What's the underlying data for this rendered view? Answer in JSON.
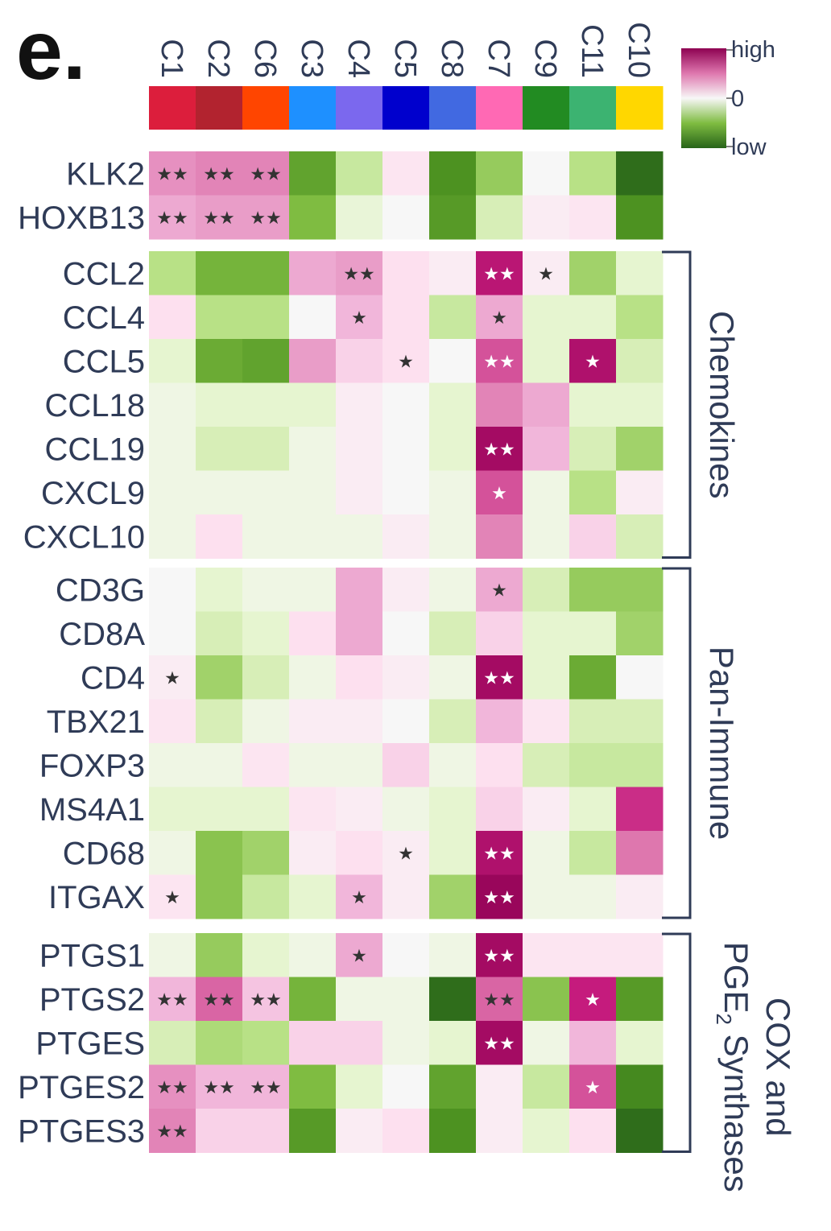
{
  "panel_label": "e.",
  "chart_data": {
    "type": "heatmap",
    "columns": [
      "C1",
      "C2",
      "C6",
      "C3",
      "C4",
      "C5",
      "C8",
      "C7",
      "C9",
      "C11",
      "C10"
    ],
    "column_colors": [
      "#dc1e3c",
      "#b2232f",
      "#ff4500",
      "#1e90ff",
      "#7b68ee",
      "#0000cd",
      "#4169e1",
      "#ff69b4",
      "#228b22",
      "#3cb371",
      "#ffd700"
    ],
    "legend": {
      "high": "high",
      "zero": "0",
      "low": "low"
    },
    "color_range": [
      -1,
      1
    ],
    "groups": [
      {
        "label": "",
        "rows": [
          {
            "gene": "KLK2",
            "values": [
              0.4,
              0.45,
              0.45,
              -0.65,
              -0.2,
              0.08,
              -0.75,
              -0.4,
              0.0,
              -0.25,
              -0.95
            ],
            "stars": [
              "**",
              "**",
              "**",
              "",
              "",
              "",
              "",
              "",
              "",
              "",
              ""
            ]
          },
          {
            "gene": "HOXB13",
            "values": [
              0.3,
              0.35,
              0.35,
              -0.5,
              -0.08,
              0.0,
              -0.7,
              -0.15,
              0.05,
              0.08,
              -0.75
            ],
            "stars": [
              "**",
              "**",
              "**",
              "",
              "",
              "",
              "",
              "",
              "",
              "",
              ""
            ]
          }
        ]
      },
      {
        "label": "Chemokines",
        "rows": [
          {
            "gene": "CCL2",
            "values": [
              -0.25,
              -0.55,
              -0.55,
              0.3,
              0.35,
              0.1,
              0.05,
              0.8,
              0.05,
              -0.35,
              -0.1
            ],
            "stars": [
              "",
              "",
              "",
              "",
              "**",
              "",
              "",
              "**",
              "*",
              "",
              ""
            ]
          },
          {
            "gene": "CCL4",
            "values": [
              0.1,
              -0.25,
              -0.25,
              0.0,
              0.25,
              0.1,
              -0.2,
              0.3,
              -0.1,
              -0.1,
              -0.25
            ],
            "stars": [
              "",
              "",
              "",
              "",
              "*",
              "",
              "",
              "*",
              "",
              "",
              ""
            ]
          },
          {
            "gene": "CCL5",
            "values": [
              -0.1,
              -0.6,
              -0.65,
              0.35,
              0.15,
              0.1,
              0.0,
              0.6,
              -0.1,
              0.85,
              -0.15
            ],
            "stars": [
              "",
              "",
              "",
              "",
              "",
              "*",
              "",
              "**",
              "",
              "*",
              ""
            ]
          },
          {
            "gene": "CCL18",
            "values": [
              -0.05,
              -0.1,
              -0.1,
              -0.1,
              0.05,
              0.0,
              -0.1,
              0.45,
              0.3,
              -0.1,
              -0.1
            ],
            "stars": [
              "",
              "",
              "",
              "",
              "",
              "",
              "",
              "",
              "",
              "",
              ""
            ]
          },
          {
            "gene": "CCL19",
            "values": [
              -0.05,
              -0.15,
              -0.15,
              -0.05,
              0.05,
              0.0,
              -0.1,
              0.9,
              0.25,
              -0.15,
              -0.35
            ],
            "stars": [
              "",
              "",
              "",
              "",
              "",
              "",
              "",
              "**",
              "",
              "",
              ""
            ]
          },
          {
            "gene": "CXCL9",
            "values": [
              -0.05,
              -0.05,
              -0.05,
              -0.05,
              0.05,
              0.0,
              -0.05,
              0.6,
              -0.05,
              -0.25,
              0.05
            ],
            "stars": [
              "",
              "",
              "",
              "",
              "",
              "",
              "",
              "*",
              "",
              "",
              ""
            ]
          },
          {
            "gene": "CXCL10",
            "values": [
              -0.05,
              0.1,
              -0.05,
              -0.05,
              -0.05,
              0.05,
              -0.05,
              0.45,
              -0.05,
              0.15,
              -0.15
            ],
            "stars": [
              "",
              "",
              "",
              "",
              "",
              "",
              "",
              "",
              "",
              "",
              ""
            ]
          }
        ]
      },
      {
        "label": "Pan-Immune",
        "rows": [
          {
            "gene": "CD3G",
            "values": [
              0.0,
              -0.1,
              -0.05,
              -0.05,
              0.3,
              0.05,
              -0.05,
              0.3,
              -0.15,
              -0.4,
              -0.4
            ],
            "stars": [
              "",
              "",
              "",
              "",
              "",
              "",
              "",
              "*",
              "",
              "",
              ""
            ]
          },
          {
            "gene": "CD8A",
            "values": [
              0.0,
              -0.15,
              -0.1,
              0.1,
              0.3,
              0.0,
              -0.15,
              0.15,
              -0.1,
              -0.1,
              -0.35
            ],
            "stars": [
              "",
              "",
              "",
              "",
              "",
              "",
              "",
              "",
              "",
              "",
              ""
            ]
          },
          {
            "gene": "CD4",
            "values": [
              0.05,
              -0.35,
              -0.15,
              -0.05,
              0.1,
              0.05,
              -0.05,
              0.9,
              -0.1,
              -0.6,
              0.0
            ],
            "stars": [
              "*",
              "",
              "",
              "",
              "",
              "",
              "",
              "**",
              "",
              "",
              ""
            ]
          },
          {
            "gene": "TBX21",
            "values": [
              0.08,
              -0.15,
              -0.05,
              0.05,
              0.05,
              0.0,
              -0.15,
              0.25,
              0.08,
              -0.15,
              -0.15
            ],
            "stars": [
              "",
              "",
              "",
              "",
              "",
              "",
              "",
              "",
              "",
              "",
              ""
            ]
          },
          {
            "gene": "FOXP3",
            "values": [
              -0.05,
              -0.05,
              0.08,
              -0.05,
              -0.05,
              0.15,
              -0.05,
              0.1,
              -0.15,
              -0.2,
              -0.2
            ],
            "stars": [
              "",
              "",
              "",
              "",
              "",
              "",
              "",
              "",
              "",
              "",
              ""
            ]
          },
          {
            "gene": "MS4A1",
            "values": [
              -0.1,
              -0.1,
              -0.1,
              0.08,
              0.05,
              -0.05,
              -0.1,
              0.15,
              0.05,
              -0.1,
              0.7
            ],
            "stars": [
              "",
              "",
              "",
              "",
              "",
              "",
              "",
              "",
              "",
              "",
              ""
            ]
          },
          {
            "gene": "CD68",
            "values": [
              -0.05,
              -0.45,
              -0.35,
              0.05,
              0.1,
              0.05,
              -0.1,
              0.85,
              -0.05,
              -0.2,
              0.5
            ],
            "stars": [
              "",
              "",
              "",
              "",
              "",
              "*",
              "",
              "**",
              "",
              "",
              ""
            ]
          },
          {
            "gene": "ITGAX",
            "values": [
              0.08,
              -0.45,
              -0.2,
              -0.1,
              0.25,
              0.05,
              -0.35,
              0.95,
              -0.05,
              -0.05,
              0.05
            ],
            "stars": [
              "*",
              "",
              "",
              "",
              "*",
              "",
              "",
              "**",
              "",
              "",
              ""
            ]
          }
        ]
      },
      {
        "label": "COX and PGE2 Synthases",
        "rows": [
          {
            "gene": "PTGS1",
            "values": [
              -0.05,
              -0.4,
              -0.1,
              -0.05,
              0.3,
              0.0,
              -0.05,
              0.9,
              0.08,
              0.08,
              0.08
            ],
            "stars": [
              "",
              "",
              "",
              "",
              "*",
              "",
              "",
              "**",
              "",
              "",
              ""
            ]
          },
          {
            "gene": "PTGS2",
            "values": [
              0.25,
              0.55,
              0.2,
              -0.55,
              -0.05,
              -0.05,
              -0.95,
              0.55,
              -0.45,
              0.75,
              -0.7
            ],
            "stars": [
              "**",
              "**",
              "**",
              "",
              "",
              "",
              "",
              "**",
              "",
              "*",
              ""
            ]
          },
          {
            "gene": "PTGES",
            "values": [
              -0.15,
              -0.3,
              -0.25,
              0.15,
              0.15,
              -0.05,
              -0.1,
              0.9,
              -0.05,
              0.25,
              -0.1
            ],
            "stars": [
              "",
              "",
              "",
              "",
              "",
              "",
              "",
              "**",
              "",
              "",
              ""
            ]
          },
          {
            "gene": "PTGES2",
            "values": [
              0.4,
              0.25,
              0.25,
              -0.5,
              -0.1,
              0.0,
              -0.65,
              0.05,
              -0.2,
              0.6,
              -0.8
            ],
            "stars": [
              "**",
              "**",
              "**",
              "",
              "",
              "",
              "",
              "",
              "",
              "*",
              ""
            ]
          },
          {
            "gene": "PTGES3",
            "values": [
              0.45,
              0.15,
              0.15,
              -0.7,
              0.05,
              0.1,
              -0.75,
              0.05,
              -0.1,
              0.1,
              -0.95
            ],
            "stars": [
              "**",
              "",
              "",
              "",
              "",
              "",
              "",
              "",
              "",
              "",
              ""
            ]
          }
        ]
      }
    ]
  }
}
